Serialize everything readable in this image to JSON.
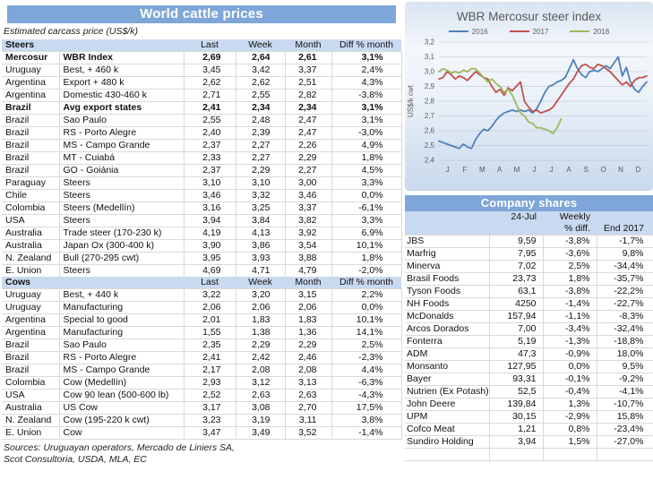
{
  "colors": {
    "title_bar_blue": "#7EA6D8",
    "header_band_blue": "#C9D9F0"
  },
  "left_panel": {
    "title": "World cattle prices",
    "subtitle": "Estimated carcass price (US$/k)",
    "steers_label": "Steers",
    "cows_label": "Cows",
    "col_headers": {
      "last": "Last",
      "week": "Week",
      "month": "Month",
      "diff": "Diff % month"
    },
    "steers_rows": [
      {
        "country": "Mercosur",
        "desc": "WBR Index",
        "last": "2,69",
        "week": "2,64",
        "month": "2,61",
        "diff": "3,1%",
        "bold": true
      },
      {
        "country": "Uruguay",
        "desc": "Best, + 460 k",
        "last": "3,45",
        "week": "3,42",
        "month": "3,37",
        "diff": "2,4%"
      },
      {
        "country": "Argentina",
        "desc": "Export + 480 k",
        "last": "2,62",
        "week": "2,62",
        "month": "2,51",
        "diff": "4,3%"
      },
      {
        "country": "Argentina",
        "desc": "Domestic 430-460 k",
        "last": "2,71",
        "week": "2,55",
        "month": "2,82",
        "diff": "-3,8%"
      },
      {
        "country": "Brazil",
        "desc": "Avg export states",
        "last": "2,41",
        "week": "2,34",
        "month": "2,34",
        "diff": "3,1%",
        "bold": true
      },
      {
        "country": "Brazil",
        "desc": "Sao Paulo",
        "last": "2,55",
        "week": "2,48",
        "month": "2,47",
        "diff": "3,1%"
      },
      {
        "country": "Brazil",
        "desc": "RS - Porto Alegre",
        "last": "2,40",
        "week": "2,39",
        "month": "2,47",
        "diff": "-3,0%"
      },
      {
        "country": "Brazil",
        "desc": "MS - Campo Grande",
        "last": "2,37",
        "week": "2,27",
        "month": "2,26",
        "diff": "4,9%"
      },
      {
        "country": "Brazil",
        "desc": "MT - Cuiabá",
        "last": "2,33",
        "week": "2,27",
        "month": "2,29",
        "diff": "1,8%"
      },
      {
        "country": "Brazil",
        "desc": "GO - Goiánia",
        "last": "2,37",
        "week": "2,29",
        "month": "2,27",
        "diff": "4,5%"
      },
      {
        "country": "Paraguay",
        "desc": "Steers",
        "last": "3,10",
        "week": "3,10",
        "month": "3,00",
        "diff": "3,3%"
      },
      {
        "country": "Chile",
        "desc": "Steers",
        "last": "3,46",
        "week": "3,32",
        "month": "3,46",
        "diff": "0,0%"
      },
      {
        "country": "Colombia",
        "desc": "Steers (Medellín)",
        "last": "3,16",
        "week": "3,25",
        "month": "3,37",
        "diff": "-6,1%"
      },
      {
        "country": "USA",
        "desc": "Steers",
        "last": "3,94",
        "week": "3,84",
        "month": "3,82",
        "diff": "3,3%"
      },
      {
        "country": "Australia",
        "desc": "Trade steer (170-230 k)",
        "last": "4,19",
        "week": "4,13",
        "month": "3,92",
        "diff": "6,9%"
      },
      {
        "country": "Australia",
        "desc": "Japan Ox (300-400 k)",
        "last": "3,90",
        "week": "3,86",
        "month": "3,54",
        "diff": "10,1%"
      },
      {
        "country": "N. Zealand",
        "desc": "Bull (270-295 cwt)",
        "last": "3,95",
        "week": "3,93",
        "month": "3,88",
        "diff": "1,8%"
      },
      {
        "country": "E. Union",
        "desc": "Steers",
        "last": "4,69",
        "week": "4,71",
        "month": "4,79",
        "diff": "-2,0%"
      }
    ],
    "cows_rows": [
      {
        "country": "Uruguay",
        "desc": "Best, + 440 k",
        "last": "3,22",
        "week": "3,20",
        "month": "3,15",
        "diff": "2,2%"
      },
      {
        "country": "Uruguay",
        "desc": "Manufacturing",
        "last": "2,06",
        "week": "2,06",
        "month": "2,06",
        "diff": "0,0%"
      },
      {
        "country": "Argentina",
        "desc": "Special to good",
        "last": "2,01",
        "week": "1,83",
        "month": "1,83",
        "diff": "10,1%"
      },
      {
        "country": "Argentina",
        "desc": "Manufacturing",
        "last": "1,55",
        "week": "1,38",
        "month": "1,36",
        "diff": "14,1%"
      },
      {
        "country": "Brazil",
        "desc": "Sao Paulo",
        "last": "2,35",
        "week": "2,29",
        "month": "2,29",
        "diff": "2,5%"
      },
      {
        "country": "Brazil",
        "desc": "RS - Porto Alegre",
        "last": "2,41",
        "week": "2,42",
        "month": "2,46",
        "diff": "-2,3%"
      },
      {
        "country": "Brazil",
        "desc": "MS - Campo Grande",
        "last": "2,17",
        "week": "2,08",
        "month": "2,08",
        "diff": "4,4%"
      },
      {
        "country": "Colombia",
        "desc": "Cow (Medellín)",
        "last": "2,93",
        "week": "3,12",
        "month": "3,13",
        "diff": "-6,3%"
      },
      {
        "country": "USA",
        "desc": "Cow 90 lean (500-600 lb)",
        "last": "2,52",
        "week": "2,63",
        "month": "2,63",
        "diff": "-4,3%"
      },
      {
        "country": "Australia",
        "desc": "US Cow",
        "last": "3,17",
        "week": "3,08",
        "month": "2,70",
        "diff": "17,5%"
      },
      {
        "country": "N. Zealand",
        "desc": "Cow (195-220 k cwt)",
        "last": "3,23",
        "week": "3,19",
        "month": "3,11",
        "diff": "3,8%"
      },
      {
        "country": "E. Union",
        "desc": "Cow",
        "last": "3,47",
        "week": "3,49",
        "month": "3,52",
        "diff": "-1,4%"
      }
    ],
    "sources_1": "Sources: Uruguayan operators, Mercado de Liniers SA,",
    "sources_2": "Scot Consultoria, USDA, MLA, EC"
  },
  "chart_data": {
    "type": "line",
    "title": "WBR Mercosur steer index",
    "ylabel": "US$/k cwt",
    "xlabel": "",
    "ylim": [
      2.4,
      3.2
    ],
    "ytick_step": 0.1,
    "grid": true,
    "legend_position": "top",
    "x_labels": [
      "J",
      "F",
      "M",
      "A",
      "M",
      "J",
      "J",
      "A",
      "S",
      "O",
      "N",
      "D"
    ],
    "weeks": 52,
    "series": [
      {
        "name": "2016",
        "color": "#4F81BD",
        "values": [
          2.53,
          2.52,
          2.51,
          2.5,
          2.49,
          2.48,
          2.51,
          2.49,
          2.48,
          2.54,
          2.58,
          2.61,
          2.6,
          2.63,
          2.67,
          2.7,
          2.72,
          2.73,
          2.74,
          2.73,
          2.74,
          2.73,
          2.74,
          2.72,
          2.75,
          2.8,
          2.86,
          2.9,
          2.91,
          2.93,
          2.94,
          2.96,
          3.02,
          3.08,
          3.02,
          2.98,
          2.96,
          3.0,
          3.01,
          3.0,
          3.02,
          3.04,
          3.02,
          3.06,
          3.1,
          2.97,
          3.03,
          2.93,
          2.88,
          2.86,
          2.9,
          2.93
        ]
      },
      {
        "name": "2017",
        "color": "#C0504D",
        "values": [
          2.95,
          2.96,
          3.0,
          2.98,
          2.95,
          2.97,
          2.96,
          2.94,
          2.97,
          3.0,
          2.98,
          2.96,
          2.95,
          2.9,
          2.86,
          2.88,
          2.84,
          2.89,
          2.87,
          2.9,
          2.93,
          2.8,
          2.76,
          2.73,
          2.74,
          2.72,
          2.73,
          2.74,
          2.76,
          2.8,
          2.84,
          2.88,
          2.92,
          2.95,
          3.0,
          3.04,
          3.05,
          3.03,
          3.02,
          3.05,
          3.04,
          3.02,
          3.0,
          2.97,
          2.94,
          2.91,
          2.93,
          2.9,
          2.94,
          2.96,
          2.96,
          2.97
        ]
      },
      {
        "name": "2018",
        "color": "#9BBB59",
        "values": [
          3.0,
          3.02,
          3.01,
          2.99,
          3.0,
          2.99,
          3.01,
          3.0,
          3.02,
          3.02,
          2.99,
          2.96,
          2.93,
          2.95,
          2.92,
          2.9,
          2.86,
          2.88,
          2.84,
          2.78,
          2.72,
          2.7,
          2.66,
          2.65,
          2.62,
          2.62,
          2.61,
          2.6,
          2.58,
          2.62,
          2.68
        ]
      }
    ]
  },
  "company_shares": {
    "title": "Company shares",
    "headers": {
      "date": "24-Jul",
      "weekly_top": "Weekly",
      "weekly_bottom": "% diff.",
      "end": "End 2017"
    },
    "rows": [
      {
        "name": "JBS",
        "price": "9,59",
        "weekly": "-3,8%",
        "end2017": "-1,7%"
      },
      {
        "name": "Marfrig",
        "price": "7,95",
        "weekly": "-3,6%",
        "end2017": "9,8%"
      },
      {
        "name": "Minerva",
        "price": "7,02",
        "weekly": "2,5%",
        "end2017": "-34,4%"
      },
      {
        "name": "Brasil Foods",
        "price": "23,73",
        "weekly": "1,8%",
        "end2017": "-35,7%"
      },
      {
        "name": "Tyson Foods",
        "price": "63,1",
        "weekly": "-3,8%",
        "end2017": "-22,2%"
      },
      {
        "name": "NH Foods",
        "price": "4250",
        "weekly": "-1,4%",
        "end2017": "-22,7%"
      },
      {
        "name": "McDonalds",
        "price": "157,94",
        "weekly": "-1,1%",
        "end2017": "-8,3%"
      },
      {
        "name": "Arcos Dorados",
        "price": "7,00",
        "weekly": "-3,4%",
        "end2017": "-32,4%"
      },
      {
        "name": "Fonterra",
        "price": "5,19",
        "weekly": "-1,3%",
        "end2017": "-18,8%"
      },
      {
        "name": "ADM",
        "price": "47,3",
        "weekly": "-0,9%",
        "end2017": "18,0%"
      },
      {
        "name": "Monsanto",
        "price": "127,95",
        "weekly": "0,0%",
        "end2017": "9,5%"
      },
      {
        "name": "Bayer",
        "price": "93,31",
        "weekly": "-0,1%",
        "end2017": "-9,2%"
      },
      {
        "name": "Nutrien (Ex Potash)",
        "price": "52,5",
        "weekly": "-0,4%",
        "end2017": "-4,1%"
      },
      {
        "name": "John Deere",
        "price": "139,84",
        "weekly": "1,3%",
        "end2017": "-10,7%"
      },
      {
        "name": "UPM",
        "price": "30,15",
        "weekly": "-2,9%",
        "end2017": "15,8%"
      },
      {
        "name": "Cofco Meat",
        "price": "1,21",
        "weekly": "0,8%",
        "end2017": "-23,4%"
      },
      {
        "name": "Sundiro Holding",
        "price": "3,94",
        "weekly": "1,5%",
        "end2017": "-27,0%"
      }
    ]
  }
}
